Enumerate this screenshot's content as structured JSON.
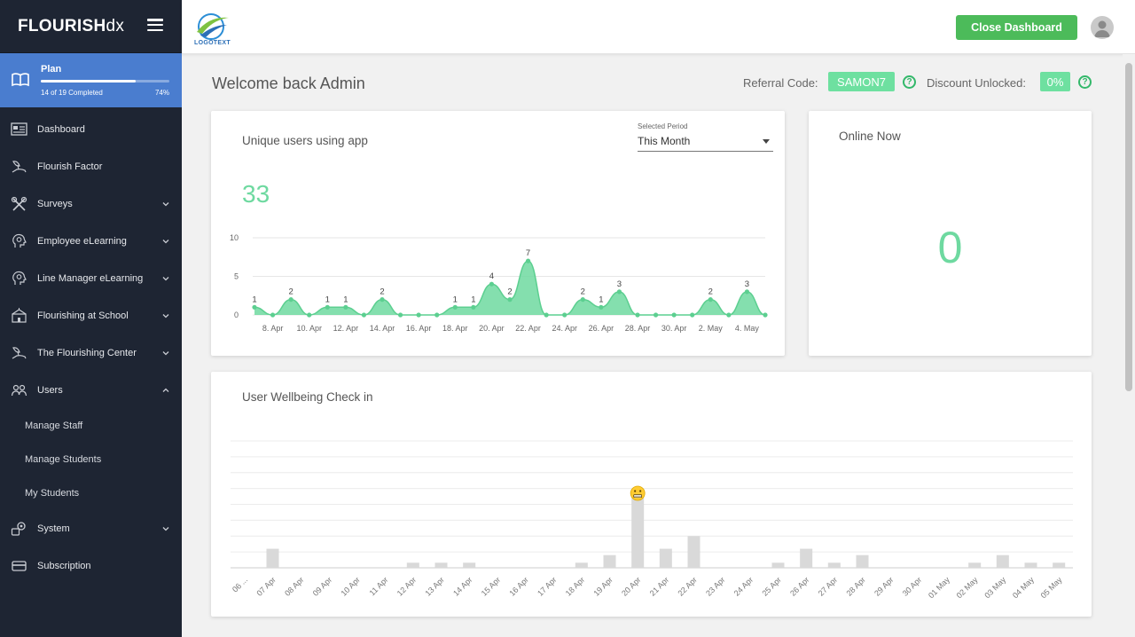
{
  "sidebar": {
    "brand": {
      "bold": "FLOURISH",
      "thin": "dx"
    },
    "plan": {
      "title": "Plan",
      "subtitle": "14 of 19 Completed",
      "percent_label": "74%",
      "progress": 0.74
    },
    "items": [
      {
        "label": "Dashboard",
        "icon": "dashboard-icon",
        "chevron": false
      },
      {
        "label": "Flourish Factor",
        "icon": "leaf-hand-icon",
        "chevron": false
      },
      {
        "label": "Surveys",
        "icon": "tools-icon",
        "chevron": true
      },
      {
        "label": "Employee eLearning",
        "icon": "head-bulb-icon",
        "chevron": true
      },
      {
        "label": "Line Manager eLearning",
        "icon": "head-bulb-icon",
        "chevron": true
      },
      {
        "label": "Flourishing at School",
        "icon": "school-icon",
        "chevron": true
      },
      {
        "label": "The Flourishing Center",
        "icon": "leaf-hand-icon",
        "chevron": true
      },
      {
        "label": "Users",
        "icon": "users-icon",
        "chevron": true
      }
    ],
    "users_sub": [
      "Manage Staff",
      "Manage Students",
      "My Students"
    ],
    "bottom_items": [
      {
        "label": "System",
        "icon": "system-icon",
        "chevron": true
      },
      {
        "label": "Subscription",
        "icon": "card-icon",
        "chevron": false
      }
    ]
  },
  "topbar": {
    "logo_text": "LOGOTEXT",
    "close_button": "Close Dashboard"
  },
  "header": {
    "welcome": "Welcome back Admin",
    "referral_label": "Referral Code:",
    "referral_code": "SAMON7",
    "discount_label": "Discount Unlocked:",
    "discount_value": "0%",
    "help_glyph": "?"
  },
  "unique_users": {
    "title": "Unique users using app",
    "period_label": "Selected Period",
    "period_value": "This Month",
    "total": "33"
  },
  "online": {
    "title": "Online Now",
    "value": "0"
  },
  "wellbeing": {
    "title": "User Wellbeing Check in"
  },
  "colors": {
    "sidebar_bg": "#1e2533",
    "plan_bg": "#4a7dcf",
    "accent_green": "#4cbb5a",
    "chart_green": "#6ed9a0"
  },
  "chart_data": [
    {
      "type": "area",
      "title": "Unique users using app",
      "x": [
        "7 Apr",
        "8 Apr",
        "9 Apr",
        "10 Apr",
        "11 Apr",
        "12 Apr",
        "13 Apr",
        "14 Apr",
        "15 Apr",
        "16 Apr",
        "17 Apr",
        "18 Apr",
        "19 Apr",
        "20 Apr",
        "21 Apr",
        "22 Apr",
        "23 Apr",
        "24 Apr",
        "25 Apr",
        "26 Apr",
        "27 Apr",
        "28 Apr",
        "29 Apr",
        "30 Apr",
        "1 May",
        "2 May",
        "3 May",
        "4 May",
        "5 May"
      ],
      "x_tick_labels": [
        "8. Apr",
        "10. Apr",
        "12. Apr",
        "14. Apr",
        "16. Apr",
        "18. Apr",
        "20. Apr",
        "22. Apr",
        "24. Apr",
        "26. Apr",
        "28. Apr",
        "30. Apr",
        "2. May",
        "4. May"
      ],
      "values": [
        1,
        0,
        2,
        0,
        1,
        1,
        0,
        2,
        0,
        0,
        0,
        1,
        1,
        4,
        2,
        7,
        0,
        0,
        2,
        1,
        3,
        0,
        0,
        0,
        0,
        2,
        0,
        3,
        0
      ],
      "ylim": [
        0,
        10
      ],
      "y_ticks": [
        "0",
        "5",
        "10"
      ],
      "grid": true
    },
    {
      "type": "bar",
      "title": "User Wellbeing Check in",
      "categories": [
        "06 ...",
        "07 Apr",
        "08 Apr",
        "09 Apr",
        "10 Apr",
        "11 Apr",
        "12 Apr",
        "13 Apr",
        "14 Apr",
        "15 Apr",
        "16 Apr",
        "17 Apr",
        "18 Apr",
        "19 Apr",
        "20 Apr",
        "21 Apr",
        "22 Apr",
        "23 Apr",
        "24 Apr",
        "25 Apr",
        "26 Apr",
        "27 Apr",
        "28 Apr",
        "29 Apr",
        "30 Apr",
        "01 May",
        "02 May",
        "03 May",
        "04 May",
        "05 May"
      ],
      "values": [
        0,
        1.5,
        0,
        0,
        0,
        0,
        0.4,
        0.4,
        0.4,
        0,
        0,
        0,
        0.4,
        1,
        6,
        1.5,
        2.5,
        0,
        0,
        0.4,
        1.5,
        0.4,
        1,
        0,
        0,
        0,
        0.4,
        1,
        0.4,
        0.4
      ],
      "ylim": [
        0,
        10
      ],
      "annotation": {
        "category": "20 Apr",
        "icon": "grimace-emoji-icon"
      },
      "grid": true
    }
  ]
}
